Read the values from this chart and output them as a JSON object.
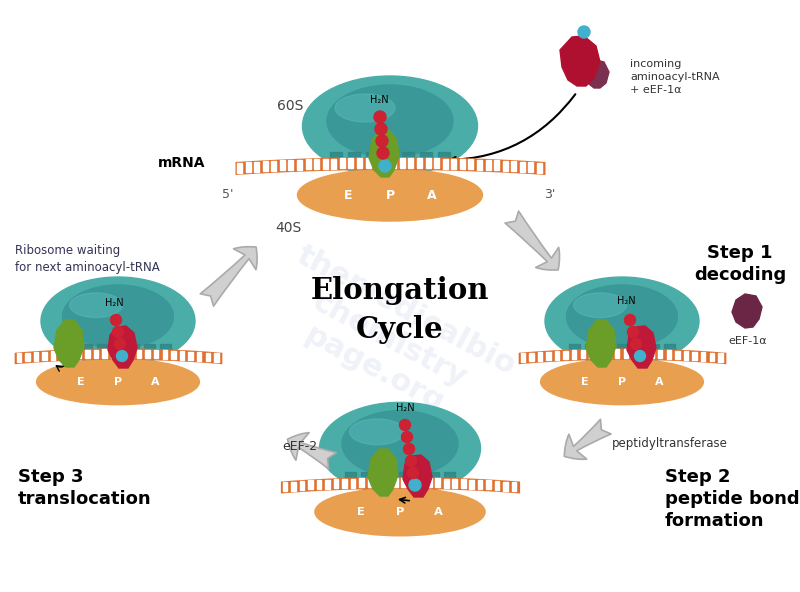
{
  "bg": "#FFFFFF",
  "teal_outer": "#4AADA8",
  "teal_inner": "#3A9898",
  "teal_notch": "#2E8585",
  "orange_mrna": "#E07030",
  "orange_40s": "#E8A050",
  "red_trna": "#C01838",
  "green_trna": "#6A9E28",
  "red_bead": "#CC2233",
  "blue_bead": "#40B0CC",
  "crimson_inc": "#B01030",
  "mauve_inc": "#7A3050",
  "dark_mauve": "#6B2545",
  "gray_arr_fc": "#D0D0D0",
  "gray_arr_ec": "#AAAAAA",
  "wm_color": "#C8D0E8",
  "title": "Elongation\nCycle",
  "label_60s": "60S",
  "label_40s": "40S",
  "label_5p": "5'",
  "label_3p": "3'",
  "mrna": "mRNA",
  "h2n": "H₂N",
  "rib_wait": "Ribosome waiting\nfor next aminoacyl-tRNA",
  "step1": "Step 1\ndecoding",
  "step2": "Step 2\npeptide bond\nformation",
  "step3": "Step 3\ntranslocation",
  "incoming": "incoming\naminoacyl-tRNA\n+ eEF-1α",
  "eef1a": "eEF-1α",
  "eef2": "eEF-2",
  "peptidyl": "peptidyltransferase"
}
